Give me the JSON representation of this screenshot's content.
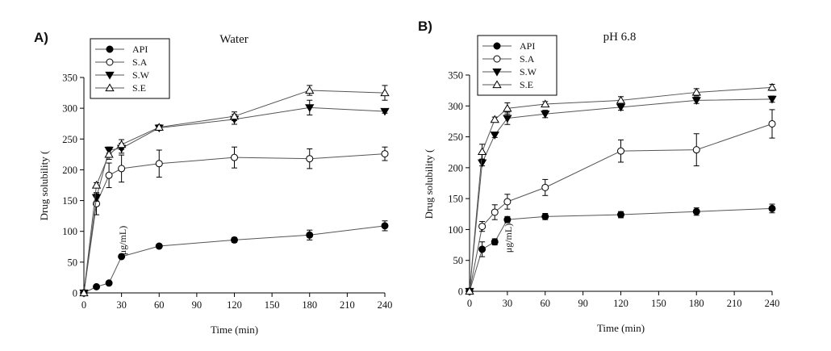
{
  "figure": {
    "panels": [
      {
        "label": "A)"
      },
      {
        "label": "B)"
      }
    ]
  },
  "chart_data": [
    {
      "type": "line",
      "title": "Water",
      "xlabel": "Time (min)",
      "ylabel": "Drug solubility (",
      "ylabel_unit": "μg/mL)",
      "xlim": [
        0,
        240
      ],
      "ylim": [
        0,
        350
      ],
      "xticks": [
        0,
        30,
        60,
        90,
        120,
        150,
        180,
        210,
        240
      ],
      "yticks": [
        0,
        50,
        100,
        150,
        200,
        250,
        300,
        350
      ],
      "legend_position": "top-left",
      "series": [
        {
          "name": "API",
          "marker": "filled-circle",
          "x": [
            0,
            10,
            20,
            30,
            60,
            120,
            180,
            240
          ],
          "y": [
            0,
            10,
            16,
            59,
            76,
            86,
            94,
            109
          ],
          "err": [
            0,
            1,
            2,
            2,
            3,
            4,
            8,
            8
          ]
        },
        {
          "name": "S.A",
          "marker": "open-circle",
          "x": [
            0,
            10,
            20,
            30,
            60,
            120,
            180,
            240
          ],
          "y": [
            0,
            145,
            191,
            202,
            210,
            220,
            218,
            226
          ],
          "err": [
            0,
            18,
            20,
            22,
            22,
            17,
            16,
            11
          ]
        },
        {
          "name": "S.W",
          "marker": "filled-triangle-down",
          "x": [
            0,
            10,
            20,
            30,
            60,
            120,
            180,
            240
          ],
          "y": [
            0,
            155,
            232,
            235,
            268,
            282,
            301,
            295
          ],
          "err": [
            0,
            6,
            5,
            8,
            4,
            8,
            12,
            3
          ]
        },
        {
          "name": "S.E",
          "marker": "open-triangle-up",
          "x": [
            0,
            10,
            20,
            30,
            60,
            120,
            180,
            240
          ],
          "y": [
            0,
            175,
            225,
            241,
            269,
            287,
            329,
            325
          ],
          "err": [
            0,
            4,
            8,
            8,
            4,
            7,
            8,
            12
          ]
        }
      ]
    },
    {
      "type": "line",
      "title": "pH 6.8",
      "xlabel": "Time (min)",
      "ylabel": "Drug solubility (",
      "ylabel_unit": "μg/mL)",
      "xlim": [
        0,
        240
      ],
      "ylim": [
        0,
        350
      ],
      "xticks": [
        0,
        30,
        60,
        90,
        120,
        150,
        180,
        210,
        240
      ],
      "yticks": [
        0,
        50,
        100,
        150,
        200,
        250,
        300,
        350
      ],
      "legend_position": "top-left",
      "series": [
        {
          "name": "API",
          "marker": "filled-circle",
          "x": [
            0,
            10,
            20,
            30,
            60,
            120,
            180,
            240
          ],
          "y": [
            0,
            68,
            80,
            116,
            121,
            124,
            129,
            134
          ],
          "err": [
            0,
            12,
            5,
            5,
            5,
            5,
            6,
            7
          ]
        },
        {
          "name": "S.A",
          "marker": "open-circle",
          "x": [
            0,
            10,
            20,
            30,
            60,
            120,
            180,
            240
          ],
          "y": [
            0,
            105,
            128,
            145,
            168,
            227,
            229,
            271
          ],
          "err": [
            0,
            8,
            12,
            12,
            13,
            18,
            26,
            23
          ]
        },
        {
          "name": "S.W",
          "marker": "filled-triangle-down",
          "x": [
            0,
            10,
            20,
            30,
            60,
            120,
            180,
            240
          ],
          "y": [
            0,
            208,
            253,
            280,
            287,
            298,
            309,
            311
          ],
          "err": [
            0,
            5,
            4,
            10,
            6,
            5,
            5,
            5
          ]
        },
        {
          "name": "S.E",
          "marker": "open-triangle-up",
          "x": [
            0,
            10,
            20,
            30,
            60,
            120,
            180,
            240
          ],
          "y": [
            0,
            226,
            278,
            296,
            303,
            309,
            322,
            330
          ],
          "err": [
            0,
            12,
            4,
            9,
            4,
            6,
            6,
            5
          ]
        }
      ]
    }
  ]
}
